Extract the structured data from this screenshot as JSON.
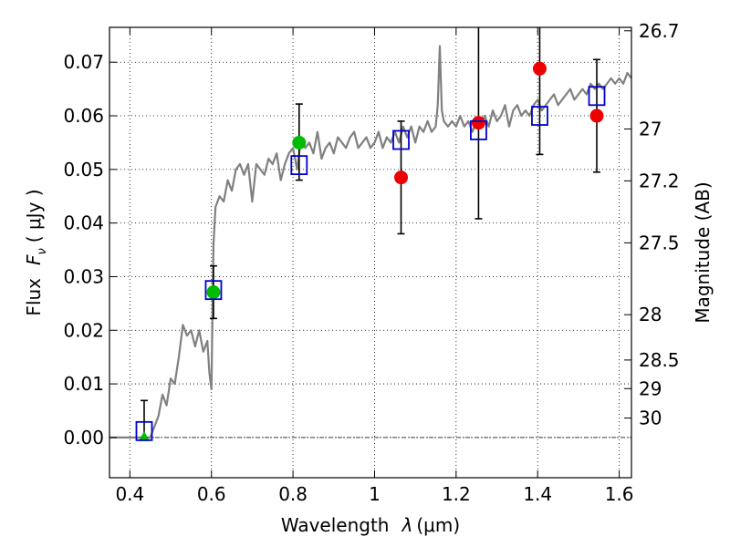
{
  "chart_data": {
    "type": "scatter",
    "xlabel_prefix": "Wavelength",
    "xlabel_symbol": "λ",
    "xlabel_unit": "(μm)",
    "ylabel_prefix": "Flux",
    "ylabel_symbol": "F",
    "ylabel_subscript": "ν",
    "ylabel_unit": "( μJy )",
    "y2label": "Magnitude (AB)",
    "xlim": [
      0.35,
      1.63
    ],
    "ylim": [
      -0.0075,
      0.0765
    ],
    "xticks": [
      {
        "value": 0.4,
        "label": "0.4"
      },
      {
        "value": 0.6,
        "label": "0.6"
      },
      {
        "value": 0.8,
        "label": "0.8"
      },
      {
        "value": 1.0,
        "label": "1"
      },
      {
        "value": 1.2,
        "label": "1.2"
      },
      {
        "value": 1.4,
        "label": "1.4"
      },
      {
        "value": 1.6,
        "label": "1.6"
      }
    ],
    "yticks": [
      {
        "value": 0.0,
        "label": "0.00"
      },
      {
        "value": 0.01,
        "label": "0.01"
      },
      {
        "value": 0.02,
        "label": "0.02"
      },
      {
        "value": 0.03,
        "label": "0.03"
      },
      {
        "value": 0.04,
        "label": "0.04"
      },
      {
        "value": 0.05,
        "label": "0.05"
      },
      {
        "value": 0.06,
        "label": "0.06"
      },
      {
        "value": 0.07,
        "label": "0.07"
      }
    ],
    "mag_ticks": [
      {
        "value": 26.7,
        "label": "26.7"
      },
      {
        "value": 27.0,
        "label": "27"
      },
      {
        "value": 27.2,
        "label": "27.2"
      },
      {
        "value": 27.5,
        "label": "27.5"
      },
      {
        "value": 28.0,
        "label": "28"
      },
      {
        "value": 28.5,
        "label": "28.5"
      },
      {
        "value": 29.0,
        "label": "29"
      },
      {
        "value": 30.0,
        "label": "30"
      }
    ],
    "grid": true,
    "zero_line": true,
    "colors": {
      "spectrum": "#808080",
      "model_box": "#0000cc",
      "green": "#00bb00",
      "red": "#ee0000",
      "errorbar": "#000000"
    },
    "spectrum": {
      "x": [
        0.35,
        0.43,
        0.45,
        0.47,
        0.48,
        0.49,
        0.5,
        0.51,
        0.52,
        0.53,
        0.54,
        0.55,
        0.56,
        0.57,
        0.58,
        0.59,
        0.595,
        0.6,
        0.605,
        0.61,
        0.62,
        0.63,
        0.64,
        0.65,
        0.66,
        0.67,
        0.68,
        0.69,
        0.7,
        0.71,
        0.72,
        0.73,
        0.74,
        0.75,
        0.76,
        0.77,
        0.78,
        0.79,
        0.8,
        0.81,
        0.82,
        0.83,
        0.84,
        0.85,
        0.86,
        0.87,
        0.88,
        0.89,
        0.9,
        0.91,
        0.92,
        0.93,
        0.94,
        0.95,
        0.96,
        0.97,
        0.98,
        0.99,
        1.0,
        1.01,
        1.02,
        1.03,
        1.04,
        1.05,
        1.06,
        1.07,
        1.08,
        1.09,
        1.1,
        1.11,
        1.12,
        1.13,
        1.14,
        1.15,
        1.155,
        1.16,
        1.165,
        1.17,
        1.18,
        1.19,
        1.2,
        1.21,
        1.22,
        1.23,
        1.24,
        1.25,
        1.26,
        1.27,
        1.28,
        1.29,
        1.3,
        1.31,
        1.32,
        1.33,
        1.34,
        1.35,
        1.36,
        1.37,
        1.38,
        1.39,
        1.4,
        1.41,
        1.42,
        1.43,
        1.44,
        1.45,
        1.46,
        1.47,
        1.48,
        1.49,
        1.5,
        1.51,
        1.52,
        1.53,
        1.54,
        1.55,
        1.56,
        1.57,
        1.58,
        1.59,
        1.6,
        1.61,
        1.62,
        1.63
      ],
      "y": [
        0.0,
        0.0,
        0.0,
        0.004,
        0.008,
        0.006,
        0.011,
        0.01,
        0.015,
        0.021,
        0.019,
        0.02,
        0.017,
        0.02,
        0.016,
        0.018,
        0.012,
        0.009,
        0.036,
        0.043,
        0.045,
        0.044,
        0.048,
        0.046,
        0.05,
        0.051,
        0.049,
        0.051,
        0.044,
        0.051,
        0.05,
        0.049,
        0.052,
        0.051,
        0.053,
        0.048,
        0.051,
        0.053,
        0.054,
        0.05,
        0.056,
        0.054,
        0.055,
        0.053,
        0.057,
        0.052,
        0.054,
        0.055,
        0.053,
        0.056,
        0.055,
        0.054,
        0.056,
        0.057,
        0.054,
        0.055,
        0.056,
        0.054,
        0.055,
        0.057,
        0.054,
        0.056,
        0.055,
        0.057,
        0.055,
        0.058,
        0.056,
        0.058,
        0.055,
        0.058,
        0.057,
        0.059,
        0.057,
        0.058,
        0.062,
        0.073,
        0.061,
        0.059,
        0.058,
        0.059,
        0.058,
        0.06,
        0.058,
        0.059,
        0.057,
        0.059,
        0.058,
        0.06,
        0.058,
        0.061,
        0.059,
        0.06,
        0.062,
        0.058,
        0.061,
        0.062,
        0.06,
        0.061,
        0.06,
        0.062,
        0.063,
        0.061,
        0.062,
        0.063,
        0.064,
        0.062,
        0.063,
        0.064,
        0.065,
        0.063,
        0.064,
        0.065,
        0.064,
        0.066,
        0.065,
        0.066,
        0.065,
        0.066,
        0.067,
        0.066,
        0.067,
        0.066,
        0.068,
        0.067
      ]
    },
    "model_boxes": [
      {
        "x": 0.435,
        "y": 0.0012
      },
      {
        "x": 0.605,
        "y": 0.0275
      },
      {
        "x": 0.815,
        "y": 0.0508
      },
      {
        "x": 1.065,
        "y": 0.0555
      },
      {
        "x": 1.255,
        "y": 0.0573
      },
      {
        "x": 1.405,
        "y": 0.06
      },
      {
        "x": 1.545,
        "y": 0.0637
      }
    ],
    "green_points": [
      {
        "x": 0.605,
        "y": 0.0271
      },
      {
        "x": 0.815,
        "y": 0.055
      }
    ],
    "green_triangles": [
      {
        "x": 0.435,
        "y": 0.0
      }
    ],
    "red_points": [
      {
        "x": 1.065,
        "y": 0.0485
      },
      {
        "x": 1.255,
        "y": 0.0587
      },
      {
        "x": 1.405,
        "y": 0.0688
      },
      {
        "x": 1.545,
        "y": 0.06
      }
    ],
    "errorbars": [
      {
        "x": 0.435,
        "ylow": 0.0,
        "yhigh": 0.0069
      },
      {
        "x": 0.605,
        "ylow": 0.0222,
        "yhigh": 0.032
      },
      {
        "x": 0.815,
        "ylow": 0.048,
        "yhigh": 0.0622
      },
      {
        "x": 1.065,
        "ylow": 0.038,
        "yhigh": 0.059
      },
      {
        "x": 1.255,
        "ylow": 0.0408,
        "yhigh": 0.077
      },
      {
        "x": 1.405,
        "ylow": 0.0528,
        "yhigh": 0.077
      },
      {
        "x": 1.545,
        "ylow": 0.0495,
        "yhigh": 0.0705
      }
    ]
  }
}
